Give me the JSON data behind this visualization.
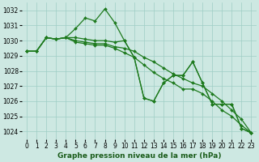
{
  "xlabel": "Graphe pression niveau de la mer (hPa)",
  "x": [
    0,
    1,
    2,
    3,
    4,
    5,
    6,
    7,
    8,
    9,
    10,
    11,
    12,
    13,
    14,
    15,
    16,
    17,
    18,
    19,
    20,
    21,
    22,
    23
  ],
  "line1": [
    1029.3,
    1029.3,
    1030.2,
    1030.1,
    1030.2,
    1030.8,
    1031.5,
    1031.3,
    1032.1,
    1031.2,
    1030.0,
    1028.9,
    1026.2,
    1026.0,
    1027.2,
    1027.7,
    1027.7,
    1028.6,
    1027.2,
    1025.8,
    1025.8,
    1025.8,
    1024.2,
    1023.9
  ],
  "line2": [
    1029.3,
    1029.3,
    1030.2,
    1030.1,
    1030.2,
    1030.0,
    1029.9,
    1029.8,
    1029.8,
    1029.6,
    1029.5,
    1029.3,
    1028.9,
    1028.6,
    1028.2,
    1027.8,
    1027.5,
    1027.2,
    1027.0,
    1026.5,
    1026.0,
    1025.4,
    1024.8,
    1023.9
  ],
  "line3": [
    1029.3,
    1029.3,
    1030.2,
    1030.1,
    1030.2,
    1029.9,
    1029.8,
    1029.7,
    1029.7,
    1029.5,
    1029.2,
    1028.9,
    1028.4,
    1027.9,
    1027.5,
    1027.2,
    1026.8,
    1026.8,
    1026.5,
    1026.0,
    1025.4,
    1025.0,
    1024.4,
    1023.9
  ],
  "line4": [
    1029.3,
    1029.3,
    1030.2,
    1030.1,
    1030.2,
    1030.2,
    1030.1,
    1030.0,
    1030.0,
    1029.9,
    1030.0,
    1028.9,
    1026.2,
    1026.0,
    1027.2,
    1027.7,
    1027.7,
    1028.6,
    1027.2,
    1025.8,
    1025.8,
    1025.8,
    1024.2,
    1023.9
  ],
  "line_color": "#1e7a1e",
  "bg_color": "#cde8e2",
  "grid_color": "#9ecdc5",
  "ylim": [
    1023.5,
    1032.5
  ],
  "yticks": [
    1024,
    1025,
    1026,
    1027,
    1028,
    1029,
    1030,
    1031,
    1032
  ],
  "xlim": [
    -0.5,
    23.5
  ],
  "marker": "D",
  "marker_size": 2.0,
  "line_width": 0.9,
  "xlabel_fontsize": 6.5,
  "tick_fontsize": 5.5
}
